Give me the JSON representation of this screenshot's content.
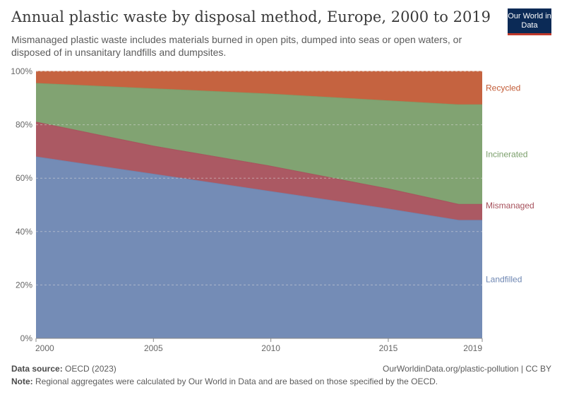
{
  "header": {
    "title": "Annual plastic waste by disposal method, Europe, 2000 to 2019",
    "subtitle": "Mismanaged plastic waste includes materials burned in open pits, dumped into seas or open waters, or disposed of in unsanitary landfills and dumpsites.",
    "logo": "Our World in Data"
  },
  "footer": {
    "source_label": "Data source:",
    "source": "OECD (2023)",
    "url": "OurWorldinData.org/plastic-pollution | CC BY",
    "note_label": "Note:",
    "note": "Regional aggregates were calculated by Our World in Data and are based on those specified by the OECD."
  },
  "colors": {
    "landfilled": "#6d86b2",
    "mismanaged": "#a6505b",
    "incinerated": "#7a9e6a",
    "recycled": "#c25b36"
  },
  "chart_data": {
    "type": "area",
    "stacked": "percent",
    "x": [
      2000,
      2005,
      2010,
      2015,
      2018,
      2019
    ],
    "series": [
      {
        "name": "Landfilled",
        "values": [
          68,
          61.5,
          55,
          48.5,
          44.2,
          44.2
        ],
        "color": "#6d86b2"
      },
      {
        "name": "Mismanaged",
        "values": [
          13,
          10.5,
          9.5,
          7.5,
          6,
          6
        ],
        "color": "#a6505b"
      },
      {
        "name": "Incinerated",
        "values": [
          14.5,
          21.5,
          27,
          33,
          37.3,
          37.3
        ],
        "color": "#7a9e6a"
      },
      {
        "name": "Recycled",
        "values": [
          4.5,
          6.5,
          8.5,
          11,
          12.5,
          12.5
        ],
        "color": "#c25b36"
      }
    ],
    "xticks": [
      "2000",
      "2005",
      "2010",
      "2015",
      "2019"
    ],
    "xtick_values": [
      2000,
      2005,
      2010,
      2015,
      2019
    ],
    "yticks": [
      "0%",
      "20%",
      "40%",
      "60%",
      "80%",
      "100%"
    ],
    "ytick_values": [
      0,
      20,
      40,
      60,
      80,
      100
    ],
    "xlim": [
      2000,
      2019
    ],
    "ylim": [
      0,
      100
    ],
    "grid": true,
    "legend": "right"
  }
}
